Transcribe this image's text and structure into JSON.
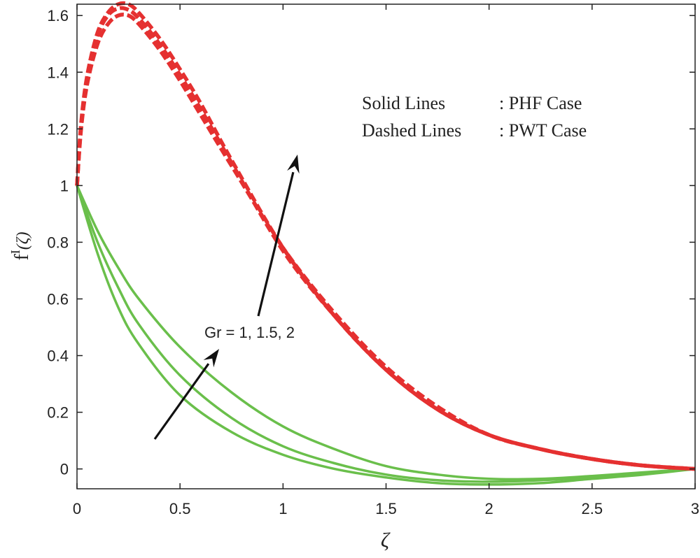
{
  "chart_data": {
    "type": "line",
    "xlabel": "ζ",
    "ylabel": "f",
    "ylabel_sup": "I",
    "ylabel_arg": "(ζ)",
    "xlim": [
      0,
      3
    ],
    "ylim": [
      -0.07,
      1.64
    ],
    "x_ticks": [
      0,
      0.5,
      1,
      1.5,
      2,
      2.5,
      3
    ],
    "x_tick_labels": [
      "0",
      "0.5",
      "1",
      "1.5",
      "2",
      "2.5",
      "3"
    ],
    "y_ticks": [
      0,
      0.2,
      0.4,
      0.6,
      0.8,
      1,
      1.2,
      1.4,
      1.6
    ],
    "y_tick_labels": [
      "0",
      "0.2",
      "0.4",
      "0.6",
      "0.8",
      "1",
      "1.2",
      "1.4",
      "1.6"
    ],
    "grid": false,
    "colors": {
      "solid": "#6abf4b",
      "dashed": "#e53030",
      "arrow": "#111111",
      "axis": "#222222"
    },
    "legend_note": {
      "line1_left": "Solid Lines",
      "line1_right": ": PHF Case",
      "line2_left": "Dashed Lines",
      "line2_right": ": PWT Case"
    },
    "annotation": {
      "text": "Gr = 1, 1.5, 2"
    },
    "series": [
      {
        "style": "solid",
        "x": [
          0,
          0.1,
          0.2,
          0.3,
          0.5,
          0.75,
          1.0,
          1.25,
          1.5,
          1.75,
          2.0,
          2.25,
          2.5,
          2.75,
          3.0
        ],
        "y": [
          1,
          0.76,
          0.57,
          0.44,
          0.26,
          0.13,
          0.05,
          0.0,
          -0.03,
          -0.05,
          -0.055,
          -0.05,
          -0.035,
          -0.02,
          0
        ]
      },
      {
        "style": "solid",
        "x": [
          0,
          0.1,
          0.2,
          0.3,
          0.5,
          0.75,
          1.0,
          1.25,
          1.5,
          1.75,
          2.0,
          2.25,
          2.5,
          2.75,
          3.0
        ],
        "y": [
          1,
          0.8,
          0.64,
          0.51,
          0.33,
          0.18,
          0.08,
          0.02,
          -0.02,
          -0.04,
          -0.045,
          -0.04,
          -0.03,
          -0.015,
          0
        ]
      },
      {
        "style": "solid",
        "x": [
          0,
          0.1,
          0.2,
          0.3,
          0.5,
          0.75,
          1.0,
          1.25,
          1.5,
          1.75,
          2.0,
          2.25,
          2.5,
          2.75,
          3.0
        ],
        "y": [
          1,
          0.84,
          0.71,
          0.6,
          0.43,
          0.27,
          0.15,
          0.07,
          0.01,
          -0.02,
          -0.035,
          -0.035,
          -0.025,
          -0.012,
          0
        ]
      },
      {
        "style": "dashed",
        "x": [
          0,
          0.02,
          0.05,
          0.1,
          0.15,
          0.2,
          0.25,
          0.3,
          0.4,
          0.5,
          0.6,
          0.75,
          1.0,
          1.25,
          1.5,
          1.75,
          2.0,
          2.25,
          2.5,
          2.75,
          3.0
        ],
        "y": [
          1,
          1.2,
          1.36,
          1.5,
          1.57,
          1.6,
          1.6,
          1.57,
          1.48,
          1.37,
          1.25,
          1.07,
          0.78,
          0.55,
          0.36,
          0.22,
          0.12,
          0.07,
          0.035,
          0.012,
          0
        ]
      },
      {
        "style": "dashed",
        "x": [
          0,
          0.02,
          0.05,
          0.1,
          0.15,
          0.2,
          0.25,
          0.3,
          0.4,
          0.5,
          0.6,
          0.75,
          1.0,
          1.25,
          1.5,
          1.75,
          2.0,
          2.25,
          2.5,
          2.75,
          3.0
        ],
        "y": [
          1,
          1.21,
          1.38,
          1.53,
          1.6,
          1.625,
          1.62,
          1.59,
          1.5,
          1.39,
          1.27,
          1.08,
          0.77,
          0.54,
          0.35,
          0.21,
          0.12,
          0.07,
          0.035,
          0.012,
          0
        ]
      },
      {
        "style": "dashed",
        "x": [
          0,
          0.02,
          0.05,
          0.1,
          0.15,
          0.2,
          0.25,
          0.3,
          0.4,
          0.5,
          0.6,
          0.75,
          1.0,
          1.25,
          1.5,
          1.75,
          2.0,
          2.25,
          2.5,
          2.75,
          3.0
        ],
        "y": [
          1,
          1.22,
          1.39,
          1.54,
          1.61,
          1.64,
          1.64,
          1.61,
          1.52,
          1.41,
          1.29,
          1.09,
          0.78,
          0.54,
          0.35,
          0.21,
          0.12,
          0.07,
          0.035,
          0.012,
          0
        ]
      }
    ]
  }
}
